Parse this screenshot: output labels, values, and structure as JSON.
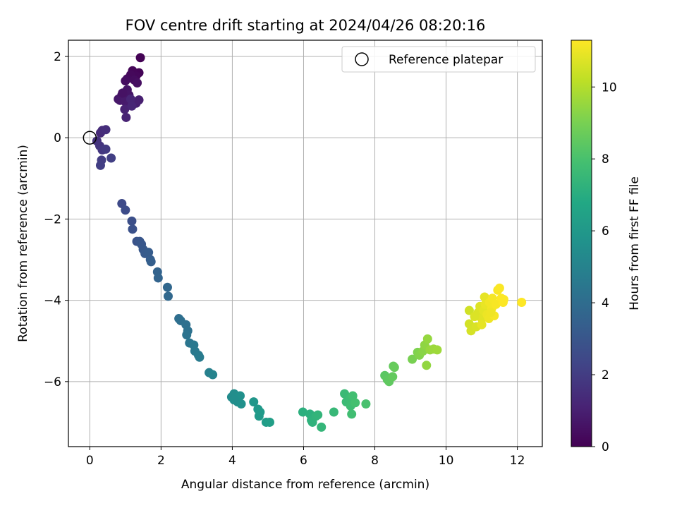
{
  "chart_data": {
    "type": "scatter",
    "title": "FOV centre drift starting at 2024/04/26 08:20:16",
    "xlabel": "Angular distance from reference (arcmin)",
    "ylabel": "Rotation from reference (arcmin)",
    "xlim": [
      -0.6,
      12.7
    ],
    "ylim": [
      -7.6,
      2.4
    ],
    "xticks": [
      0,
      2,
      4,
      6,
      8,
      10,
      12
    ],
    "yticks": [
      -6,
      -4,
      -2,
      0,
      2
    ],
    "grid": true,
    "legend": {
      "placement": "top-right",
      "entries": [
        "Reference platepar"
      ]
    },
    "reference_point": {
      "x": 0,
      "y": 0,
      "label": "Reference platepar"
    },
    "colorbar": {
      "label": "Hours from first FF file",
      "range": [
        0,
        11.3
      ],
      "ticks": [
        0,
        2,
        4,
        6,
        8,
        10
      ],
      "colormap": "viridis"
    },
    "points": [
      [
        1.42,
        1.97,
        0.05
      ],
      [
        1.38,
        1.6,
        0.1
      ],
      [
        1.2,
        1.65,
        0.15
      ],
      [
        1.3,
        1.52,
        0.2
      ],
      [
        1.15,
        1.55,
        0.25
      ],
      [
        1.05,
        1.45,
        0.3
      ],
      [
        1.25,
        1.42,
        0.35
      ],
      [
        1.0,
        1.4,
        0.4
      ],
      [
        1.33,
        1.35,
        0.45
      ],
      [
        0.9,
        1.05,
        0.5
      ],
      [
        0.95,
        1.0,
        0.55
      ],
      [
        1.05,
        1.18,
        0.6
      ],
      [
        1.1,
        1.05,
        0.65
      ],
      [
        0.8,
        0.95,
        0.7
      ],
      [
        0.85,
        0.92,
        0.75
      ],
      [
        0.98,
        0.9,
        0.8
      ],
      [
        1.1,
        0.85,
        0.85
      ],
      [
        1.2,
        0.88,
        0.9
      ],
      [
        1.3,
        0.85,
        0.95
      ],
      [
        1.38,
        0.93,
        1.0
      ],
      [
        0.98,
        0.7,
        1.05
      ],
      [
        1.02,
        0.5,
        1.1
      ],
      [
        1.15,
        0.95,
        1.15
      ],
      [
        1.18,
        0.78,
        1.2
      ],
      [
        0.92,
        1.1,
        0.55
      ],
      [
        0.3,
        0.12,
        1.3
      ],
      [
        0.35,
        0.18,
        1.4
      ],
      [
        0.45,
        0.2,
        1.5
      ],
      [
        0.2,
        -0.08,
        1.6
      ],
      [
        0.28,
        -0.2,
        1.7
      ],
      [
        0.35,
        -0.3,
        1.8
      ],
      [
        0.45,
        -0.28,
        1.9
      ],
      [
        0.33,
        -0.55,
        2.0
      ],
      [
        0.3,
        -0.68,
        2.05
      ],
      [
        0.6,
        -0.5,
        2.1
      ],
      [
        0.9,
        -1.62,
        2.5
      ],
      [
        1.0,
        -1.78,
        2.6
      ],
      [
        1.18,
        -2.05,
        2.7
      ],
      [
        1.2,
        -2.25,
        2.8
      ],
      [
        1.32,
        -2.55,
        2.9
      ],
      [
        1.4,
        -2.55,
        3.0
      ],
      [
        1.45,
        -2.62,
        3.05
      ],
      [
        1.5,
        -2.75,
        3.1
      ],
      [
        1.55,
        -2.85,
        3.2
      ],
      [
        1.65,
        -2.82,
        3.25
      ],
      [
        1.7,
        -3.0,
        3.3
      ],
      [
        1.72,
        -3.05,
        3.4
      ],
      [
        1.9,
        -3.3,
        3.55
      ],
      [
        1.92,
        -3.45,
        3.6
      ],
      [
        2.18,
        -3.68,
        3.75
      ],
      [
        2.2,
        -3.9,
        3.8
      ],
      [
        2.5,
        -4.45,
        4.05
      ],
      [
        2.55,
        -4.5,
        4.1
      ],
      [
        2.7,
        -4.6,
        4.15
      ],
      [
        2.75,
        -4.75,
        4.2
      ],
      [
        2.72,
        -4.85,
        4.3
      ],
      [
        2.8,
        -5.05,
        4.4
      ],
      [
        2.92,
        -5.1,
        4.5
      ],
      [
        2.95,
        -5.25,
        4.55
      ],
      [
        3.05,
        -5.35,
        4.6
      ],
      [
        3.08,
        -5.4,
        4.65
      ],
      [
        3.35,
        -5.78,
        4.9
      ],
      [
        3.45,
        -5.83,
        5.0
      ],
      [
        3.98,
        -6.38,
        5.4
      ],
      [
        4.05,
        -6.3,
        5.45
      ],
      [
        4.1,
        -6.4,
        5.5
      ],
      [
        4.15,
        -6.5,
        5.55
      ],
      [
        4.22,
        -6.35,
        5.6
      ],
      [
        4.25,
        -6.55,
        5.65
      ],
      [
        4.05,
        -6.45,
        5.5
      ],
      [
        4.6,
        -6.5,
        5.9
      ],
      [
        4.72,
        -6.68,
        6.0
      ],
      [
        4.75,
        -6.85,
        6.05
      ],
      [
        4.78,
        -6.75,
        6.1
      ],
      [
        4.95,
        -7.0,
        6.2
      ],
      [
        5.05,
        -7.0,
        6.3
      ],
      [
        5.98,
        -6.75,
        7.1
      ],
      [
        6.18,
        -6.8,
        7.15
      ],
      [
        6.22,
        -6.95,
        7.2
      ],
      [
        6.25,
        -7.0,
        7.25
      ],
      [
        6.35,
        -6.85,
        7.3
      ],
      [
        6.4,
        -6.82,
        7.35
      ],
      [
        6.5,
        -7.12,
        7.4
      ],
      [
        6.85,
        -6.75,
        7.5
      ],
      [
        7.15,
        -6.3,
        7.6
      ],
      [
        7.2,
        -6.5,
        7.65
      ],
      [
        7.3,
        -6.42,
        7.7
      ],
      [
        7.32,
        -6.6,
        7.75
      ],
      [
        7.35,
        -6.8,
        7.8
      ],
      [
        7.38,
        -6.35,
        7.85
      ],
      [
        7.45,
        -6.52,
        7.9
      ],
      [
        7.75,
        -6.55,
        8.0
      ],
      [
        8.28,
        -5.85,
        8.4
      ],
      [
        8.35,
        -5.95,
        8.45
      ],
      [
        8.4,
        -6.0,
        8.5
      ],
      [
        8.5,
        -5.88,
        8.55
      ],
      [
        8.52,
        -5.62,
        8.6
      ],
      [
        8.55,
        -5.65,
        8.65
      ],
      [
        9.05,
        -5.45,
        9.0
      ],
      [
        9.2,
        -5.28,
        9.1
      ],
      [
        9.25,
        -5.35,
        9.2
      ],
      [
        9.35,
        -5.25,
        9.3
      ],
      [
        9.4,
        -5.1,
        9.4
      ],
      [
        9.45,
        -5.6,
        9.45
      ],
      [
        9.48,
        -4.95,
        9.5
      ],
      [
        9.55,
        -5.22,
        9.55
      ],
      [
        9.65,
        -5.2,
        9.6
      ],
      [
        9.75,
        -5.22,
        9.65
      ],
      [
        10.65,
        -4.25,
        10.5
      ],
      [
        10.65,
        -4.58,
        10.55
      ],
      [
        10.7,
        -4.75,
        10.6
      ],
      [
        10.85,
        -4.65,
        10.65
      ],
      [
        10.9,
        -4.3,
        10.7
      ],
      [
        10.95,
        -4.15,
        10.75
      ],
      [
        11.0,
        -4.45,
        10.8
      ],
      [
        11.05,
        -4.25,
        10.85
      ],
      [
        11.08,
        -3.92,
        10.9
      ],
      [
        11.1,
        -4.1,
        10.95
      ],
      [
        11.15,
        -4.35,
        11.0
      ],
      [
        11.2,
        -4.45,
        11.05
      ],
      [
        11.22,
        -4.05,
        11.1
      ],
      [
        11.28,
        -4.2,
        11.12
      ],
      [
        11.3,
        -3.95,
        11.15
      ],
      [
        11.35,
        -4.38,
        11.18
      ],
      [
        11.4,
        -4.1,
        11.2
      ],
      [
        11.45,
        -3.75,
        11.22
      ],
      [
        11.5,
        -3.7,
        11.24
      ],
      [
        11.55,
        -3.95,
        11.26
      ],
      [
        11.6,
        -4.05,
        11.28
      ],
      [
        11.62,
        -3.98,
        11.29
      ],
      [
        12.12,
        -4.05,
        11.3
      ],
      [
        10.8,
        -4.4,
        10.7
      ],
      [
        11.0,
        -4.6,
        10.9
      ],
      [
        11.25,
        -4.3,
        11.05
      ]
    ]
  }
}
